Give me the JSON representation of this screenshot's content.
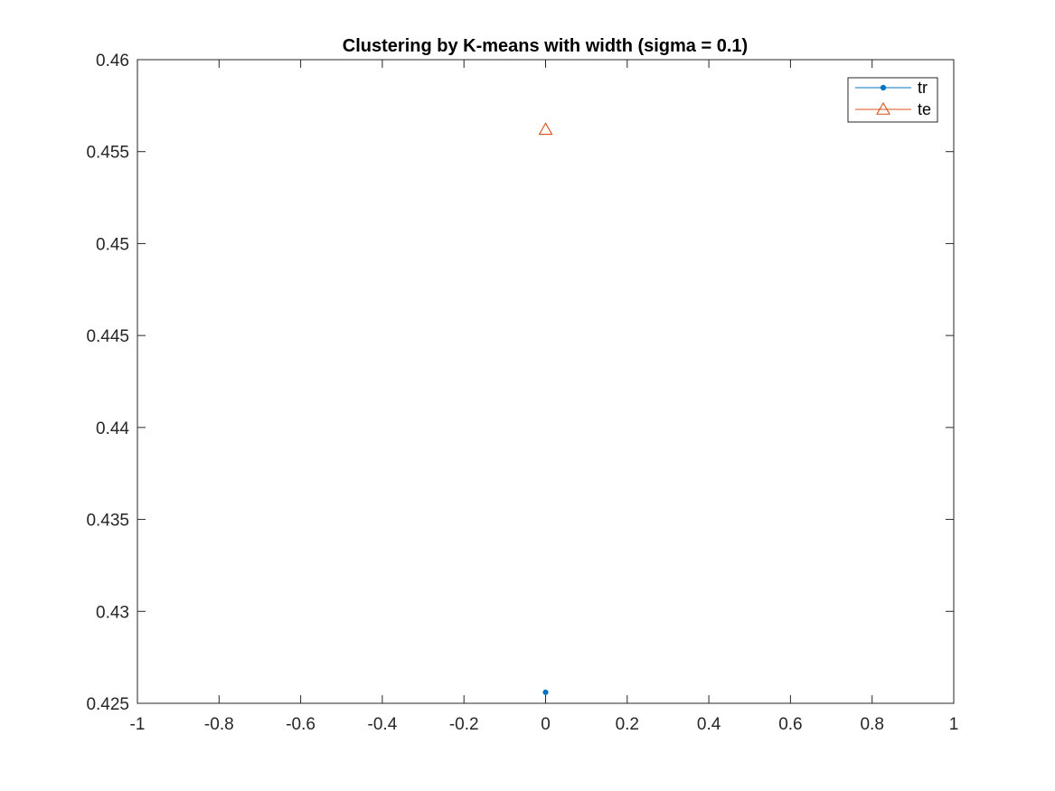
{
  "chart_data": {
    "type": "scatter",
    "title": "Clustering by K-means with width (sigma = 0.1)",
    "xlabel": "",
    "ylabel": "",
    "xlim": [
      -1,
      1
    ],
    "ylim": [
      0.425,
      0.46
    ],
    "x_ticks": [
      -1,
      -0.8,
      -0.6,
      -0.4,
      -0.2,
      0,
      0.2,
      0.4,
      0.6,
      0.8,
      1
    ],
    "x_tick_labels": [
      "-1",
      "-0.8",
      "-0.6",
      "-0.4",
      "-0.2",
      "0",
      "0.2",
      "0.4",
      "0.6",
      "0.8",
      "1"
    ],
    "y_ticks": [
      0.425,
      0.43,
      0.435,
      0.44,
      0.445,
      0.45,
      0.455,
      0.46
    ],
    "y_tick_labels": [
      "0.425",
      "0.43",
      "0.435",
      "0.44",
      "0.445",
      "0.45",
      "0.455",
      "0.46"
    ],
    "grid": false,
    "legend_position": "top-right",
    "series": [
      {
        "name": "tr",
        "marker": "dot",
        "color": "#0072BD",
        "points": [
          {
            "x": 0,
            "y": 0.4256
          }
        ]
      },
      {
        "name": "te",
        "marker": "triangle",
        "color": "#D95319",
        "points": [
          {
            "x": 0,
            "y": 0.4562
          }
        ]
      }
    ]
  }
}
